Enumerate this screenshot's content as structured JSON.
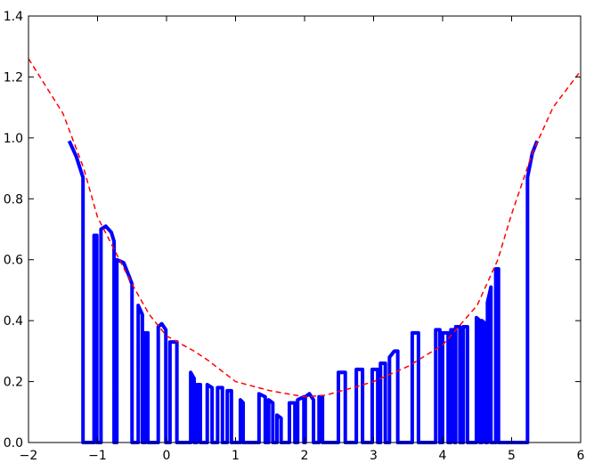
{
  "chart_data": {
    "type": "line",
    "series": [
      {
        "color": "#0000ff",
        "linewidth": 4,
        "linestyle": "solid",
        "x": [
          -1.41,
          -1.31,
          -1.21,
          -1.21,
          -1.05,
          -1.05,
          -1.01,
          -1.01,
          -0.95,
          -0.95,
          -0.88,
          -0.8,
          -0.76,
          -0.76,
          -0.72,
          -0.72,
          -0.62,
          -0.55,
          -0.5,
          -0.5,
          -0.41,
          -0.41,
          -0.35,
          -0.35,
          -0.31,
          -0.31,
          -0.27,
          -0.27,
          -0.12,
          -0.12,
          -0.07,
          -0.01,
          -0.01,
          0.05,
          0.05,
          0.15,
          0.15,
          0.35,
          0.35,
          0.4,
          0.4,
          0.44,
          0.44,
          0.49,
          0.49,
          0.59,
          0.59,
          0.66,
          0.66,
          0.74,
          0.74,
          0.81,
          0.81,
          0.88,
          0.88,
          0.94,
          0.94,
          1.07,
          1.07,
          1.11,
          1.11,
          1.34,
          1.34,
          1.43,
          1.43,
          1.48,
          1.48,
          1.54,
          1.54,
          1.6,
          1.6,
          1.66,
          1.66,
          1.78,
          1.78,
          1.86,
          1.86,
          1.9,
          1.9,
          1.99,
          1.99,
          2.01,
          2.01,
          2.07,
          2.13,
          2.13,
          2.21,
          2.21,
          2.26,
          2.26,
          2.49,
          2.49,
          2.59,
          2.59,
          2.75,
          2.75,
          2.84,
          2.84,
          2.98,
          2.98,
          3.06,
          3.06,
          3.1,
          3.1,
          3.17,
          3.17,
          3.23,
          3.23,
          3.3,
          3.35,
          3.35,
          3.56,
          3.56,
          3.65,
          3.65,
          3.9,
          3.9,
          3.96,
          3.96,
          4.0,
          4.0,
          4.08,
          4.08,
          4.12,
          4.12,
          4.17,
          4.17,
          4.19,
          4.19,
          4.25,
          4.25,
          4.3,
          4.3,
          4.36,
          4.36,
          4.49,
          4.49,
          4.54,
          4.54,
          4.57,
          4.57,
          4.62,
          4.62,
          4.65,
          4.65,
          4.7,
          4.7,
          4.77,
          4.77,
          4.81,
          4.81,
          5.23,
          5.23,
          5.3,
          5.37
        ],
        "values": [
          0.99,
          0.94,
          0.87,
          0,
          0,
          0.68,
          0.68,
          0,
          0,
          0.7,
          0.71,
          0.69,
          0.66,
          0,
          0,
          0.6,
          0.59,
          0.55,
          0.52,
          0,
          0,
          0.45,
          0.42,
          0,
          0,
          0.36,
          0.36,
          0,
          0,
          0.38,
          0.39,
          0.37,
          0,
          0,
          0.33,
          0.33,
          0,
          0,
          0.23,
          0.21,
          0,
          0,
          0.19,
          0.19,
          0,
          0,
          0.19,
          0.18,
          0,
          0,
          0.18,
          0.18,
          0,
          0,
          0.17,
          0.17,
          0,
          0,
          0.14,
          0.13,
          0,
          0,
          0.16,
          0.15,
          0,
          0,
          0.14,
          0.13,
          0,
          0,
          0.09,
          0.08,
          0,
          0,
          0.13,
          0.13,
          0,
          0,
          0.14,
          0.15,
          0,
          0,
          0.15,
          0.16,
          0.14,
          0,
          0,
          0.15,
          0.15,
          0,
          0,
          0.23,
          0.23,
          0,
          0,
          0.24,
          0.24,
          0,
          0,
          0.24,
          0.24,
          0,
          0,
          0.26,
          0.26,
          0,
          0,
          0.28,
          0.3,
          0.3,
          0,
          0,
          0.36,
          0.36,
          0,
          0,
          0.37,
          0.37,
          0,
          0,
          0.36,
          0.36,
          0,
          0,
          0.37,
          0.37,
          0,
          0,
          0.38,
          0.38,
          0,
          0,
          0.38,
          0.38,
          0,
          0,
          0.41,
          0.4,
          0,
          0,
          0.4,
          0.39,
          0,
          0,
          0.46,
          0.51,
          0,
          0,
          0.57,
          0.57,
          0,
          0,
          0.87,
          0.95,
          0.99
        ]
      },
      {
        "color": "#ff0000",
        "linewidth": 1.5,
        "linestyle": "dashed",
        "x": [
          -2,
          -1.5,
          -1.2,
          -1,
          -0.75,
          -0.5,
          -0.25,
          0,
          0.4,
          0.6,
          1,
          1.5,
          2,
          2.3,
          2.7,
          3,
          3.5,
          4,
          4.5,
          4.8,
          5,
          5.3,
          5.6,
          6
        ],
        "values": [
          1.26,
          1.08,
          0.9,
          0.74,
          0.63,
          0.52,
          0.42,
          0.35,
          0.3,
          0.27,
          0.2,
          0.17,
          0.15,
          0.155,
          0.18,
          0.2,
          0.25,
          0.32,
          0.45,
          0.6,
          0.75,
          0.95,
          1.1,
          1.22
        ]
      }
    ],
    "xlim": [
      -2,
      6
    ],
    "xticks": [
      {
        "value": -2,
        "label": "−2"
      },
      {
        "value": -1,
        "label": "−1"
      },
      0,
      1,
      2,
      3,
      4,
      5,
      6
    ],
    "ylim": [
      0,
      1.4
    ],
    "yticks": [
      {
        "value": 0,
        "label": "0.0"
      },
      0.2,
      0.4,
      0.6,
      0.8,
      {
        "value": 1,
        "label": "1.0"
      },
      1.2,
      1.4
    ],
    "grid": false
  }
}
